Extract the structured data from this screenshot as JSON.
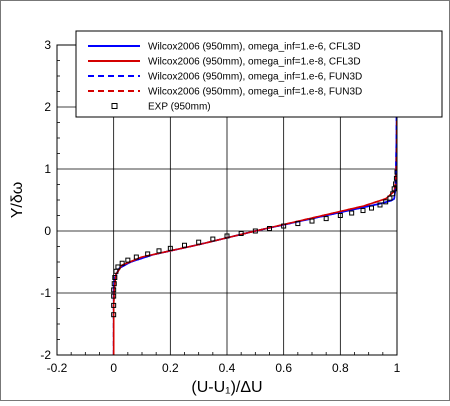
{
  "chart_data": {
    "type": "line",
    "xlabel": "(U-U₁)/ΔU",
    "ylabel": "Y/δω",
    "xlim": [
      -0.2,
      1.0
    ],
    "ylim": [
      -2,
      3
    ],
    "xticks": [
      "-0.2",
      "0",
      "0.2",
      "0.4",
      "0.6",
      "0.8",
      "1"
    ],
    "yticks": [
      "-2",
      "-1",
      "0",
      "1",
      "2",
      "3"
    ],
    "grid": true,
    "legend_position": "top",
    "series": [
      {
        "name": "Wilcox2006 (950mm), omega_inf=1.e-6, CFL3D",
        "color": "#0000ff",
        "style": "solid",
        "x": [
          0.0,
          0.0,
          0.004,
          0.02,
          0.06,
          0.14,
          0.3,
          0.5,
          0.7,
          0.86,
          0.94,
          0.98,
          0.99,
          0.995,
          0.998,
          1.0
        ],
        "y": [
          -2.0,
          -0.9,
          -0.75,
          -0.6,
          -0.5,
          -0.38,
          -0.22,
          0.0,
          0.2,
          0.36,
          0.44,
          0.49,
          0.52,
          0.7,
          1.5,
          3.0
        ]
      },
      {
        "name": "Wilcox2006 (950mm), omega_inf=1.e-8, CFL3D",
        "color": "#d40000",
        "style": "solid",
        "x": [
          0.0,
          0.0,
          0.002,
          0.008,
          0.03,
          0.1,
          0.3,
          0.5,
          0.7,
          0.88,
          0.96,
          0.99,
          0.996,
          0.999,
          1.0
        ],
        "y": [
          -2.0,
          -1.2,
          -0.95,
          -0.7,
          -0.55,
          -0.42,
          -0.22,
          0.0,
          0.21,
          0.4,
          0.52,
          0.64,
          0.8,
          1.3,
          3.0
        ]
      },
      {
        "name": "Wilcox2006 (950mm), omega_inf=1.e-6, FUN3D",
        "color": "#0000ff",
        "style": "dashed",
        "x": [
          0.0,
          0.0,
          0.004,
          0.02,
          0.06,
          0.14,
          0.3,
          0.5,
          0.7,
          0.86,
          0.94,
          0.98,
          0.99,
          0.995,
          0.998,
          1.0
        ],
        "y": [
          -2.0,
          -0.9,
          -0.75,
          -0.6,
          -0.5,
          -0.38,
          -0.22,
          0.0,
          0.2,
          0.36,
          0.44,
          0.49,
          0.52,
          0.7,
          1.5,
          3.0
        ]
      },
      {
        "name": "Wilcox2006 (950mm), omega_inf=1.e-8, FUN3D",
        "color": "#d40000",
        "style": "dashed",
        "x": [
          0.0,
          0.0,
          0.002,
          0.008,
          0.03,
          0.1,
          0.3,
          0.5,
          0.7,
          0.88,
          0.96,
          0.99,
          0.996,
          0.999,
          1.0
        ],
        "y": [
          -2.0,
          -1.2,
          -0.95,
          -0.7,
          -0.55,
          -0.42,
          -0.22,
          0.0,
          0.21,
          0.4,
          0.52,
          0.64,
          0.8,
          1.3,
          3.0
        ]
      },
      {
        "name": "EXP (950mm)",
        "color": "#000000",
        "style": "markers",
        "x": [
          0.0,
          0.0,
          0.0,
          0.0,
          0.002,
          0.004,
          0.008,
          0.015,
          0.03,
          0.05,
          0.08,
          0.12,
          0.16,
          0.2,
          0.25,
          0.3,
          0.35,
          0.4,
          0.45,
          0.5,
          0.55,
          0.6,
          0.65,
          0.7,
          0.75,
          0.8,
          0.84,
          0.88,
          0.91,
          0.94,
          0.96,
          0.975,
          0.985,
          0.99,
          0.995,
          0.998,
          1.0
        ],
        "y": [
          -1.35,
          -1.2,
          -1.05,
          -0.95,
          -0.85,
          -0.75,
          -0.65,
          -0.58,
          -0.52,
          -0.47,
          -0.42,
          -0.37,
          -0.32,
          -0.28,
          -0.23,
          -0.18,
          -0.13,
          -0.08,
          -0.04,
          0.0,
          0.04,
          0.08,
          0.12,
          0.16,
          0.2,
          0.25,
          0.29,
          0.33,
          0.37,
          0.42,
          0.47,
          0.53,
          0.6,
          0.68,
          0.76,
          0.85,
          0.95
        ]
      }
    ]
  }
}
